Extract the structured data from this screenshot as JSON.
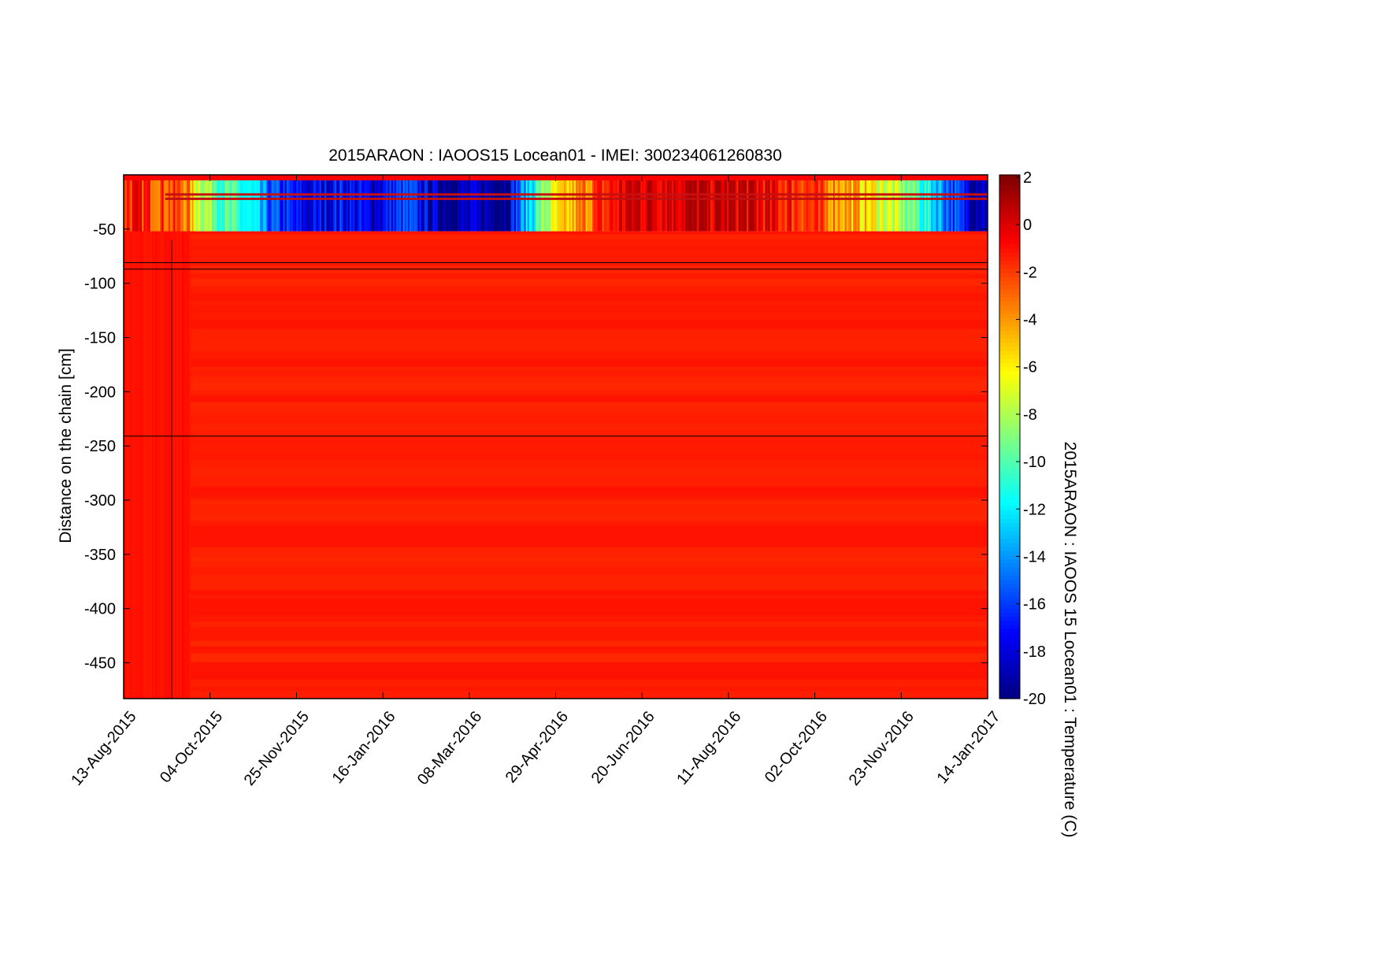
{
  "chart_data": {
    "type": "heatmap",
    "title": "2015ARAON : IAOOS15  Locean01 - IMEI: 300234061260830",
    "xlabel": "",
    "ylabel": "Distance on the chain [cm]",
    "colorbar_label": "2015ARAON : IAOOS 15 Locean01 : Temperature (C)",
    "x_start_date": "13-Aug-2015",
    "x_range_days": [
      0,
      520
    ],
    "x_ticks_days": [
      0,
      52,
      104,
      156,
      208,
      260,
      312,
      364,
      416,
      468,
      520
    ],
    "x_tick_labels": [
      "13-Aug-2015",
      "04-Oct-2015",
      "25-Nov-2015",
      "16-Jan-2016",
      "08-Mar-2016",
      "29-Apr-2016",
      "20-Jun-2016",
      "11-Aug-2016",
      "02-Oct-2016",
      "23-Nov-2016",
      "14-Jan-2017"
    ],
    "ylim": [
      -483,
      0
    ],
    "y_ticks": [
      -50,
      -100,
      -150,
      -200,
      -250,
      -300,
      -350,
      -400,
      -450
    ],
    "y_tick_labels": [
      "-50",
      "-100",
      "-150",
      "-200",
      "-250",
      "-300",
      "-350",
      "-400",
      "-450"
    ],
    "clim": [
      -20,
      2
    ],
    "colormap": "jet",
    "colorbar_ticks": [
      2,
      0,
      -2,
      -4,
      -6,
      -8,
      -10,
      -12,
      -14,
      -16,
      -18,
      -20
    ],
    "colorbar_tick_labels": [
      "2",
      "0",
      "-2",
      "-4",
      "-6",
      "-8",
      "-10",
      "-12",
      "-14",
      "-16",
      "-18",
      "-20"
    ],
    "upper_layer_depth_cm": [
      0,
      -52
    ],
    "upper_layer_temperature_keypoints": [
      [
        0,
        -1.2
      ],
      [
        20,
        -2
      ],
      [
        38,
        -3
      ],
      [
        42,
        -6
      ],
      [
        50,
        -8
      ],
      [
        60,
        -10
      ],
      [
        75,
        -12
      ],
      [
        90,
        -16
      ],
      [
        110,
        -18
      ],
      [
        130,
        -17
      ],
      [
        150,
        -18
      ],
      [
        170,
        -16
      ],
      [
        190,
        -19
      ],
      [
        230,
        -19
      ],
      [
        245,
        -12
      ],
      [
        255,
        -8
      ],
      [
        265,
        -6
      ],
      [
        280,
        -3
      ],
      [
        295,
        -1
      ],
      [
        305,
        0.3
      ],
      [
        340,
        0.6
      ],
      [
        375,
        0.2
      ],
      [
        390,
        -1
      ],
      [
        410,
        -1.5
      ],
      [
        420,
        -3
      ],
      [
        435,
        -4
      ],
      [
        450,
        -6
      ],
      [
        465,
        -8
      ],
      [
        478,
        -10
      ],
      [
        490,
        -13
      ],
      [
        500,
        -16
      ],
      [
        510,
        -18
      ],
      [
        520,
        -18
      ]
    ],
    "early_period_days": [
      0,
      40
    ],
    "early_period_temperature": -0.9,
    "deep_temperature_range": [
      -1.6,
      -1.1
    ],
    "reference_lines_depth_cm": [
      -81,
      -87,
      -241
    ]
  }
}
